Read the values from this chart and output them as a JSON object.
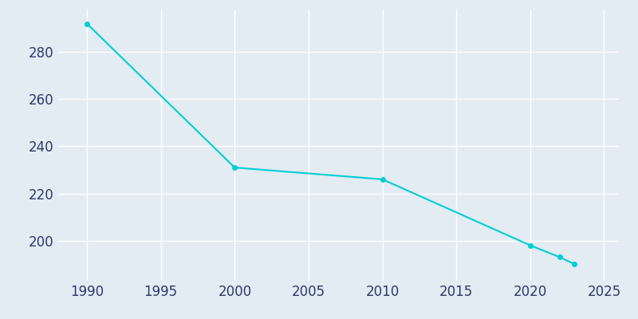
{
  "years": [
    1990,
    2000,
    2010,
    2020,
    2022,
    2023
  ],
  "population": [
    292,
    231,
    226,
    198,
    193,
    190
  ],
  "line_color": "#00CED1",
  "marker_style": "o",
  "marker_size": 4,
  "line_width": 1.5,
  "background_color": "#E3EBF3",
  "grid_color": "#FFFFFF",
  "xlim": [
    1988,
    2026
  ],
  "ylim": [
    183,
    298
  ],
  "xticks": [
    1990,
    1995,
    2000,
    2005,
    2010,
    2015,
    2020,
    2025
  ],
  "yticks": [
    200,
    220,
    240,
    260,
    280
  ],
  "tick_fontsize": 12,
  "tick_color": "#2B3A6B"
}
